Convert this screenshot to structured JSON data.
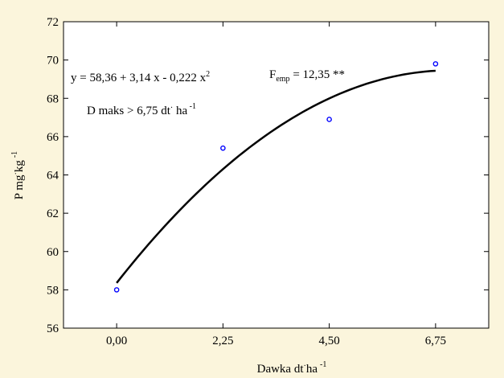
{
  "chart_data": {
    "type": "scatter",
    "xlabel_main": "Dawka dt",
    "xlabel_sup": "·",
    "xlabel_unit": "ha",
    "xlabel_exp": "-1",
    "ylabel": "P mg",
    "ylabel_sup": "·",
    "ylabel_unit": "kg",
    "ylabel_exp": "-1",
    "x_ticks": [
      {
        "value": 0,
        "label": "0,00"
      },
      {
        "value": 2.25,
        "label": "2,25"
      },
      {
        "value": 4.5,
        "label": "4,50"
      },
      {
        "value": 6.75,
        "label": "6,75"
      }
    ],
    "xlim": [
      -1.125,
      7.875
    ],
    "ylim": [
      56,
      72
    ],
    "y_ticks": [
      56,
      58,
      60,
      62,
      64,
      66,
      68,
      70,
      72
    ],
    "points": [
      {
        "x": 0,
        "y": 58.0
      },
      {
        "x": 2.25,
        "y": 65.4
      },
      {
        "x": 4.5,
        "y": 66.9
      },
      {
        "x": 6.75,
        "y": 69.8
      }
    ],
    "fit": {
      "a": 58.36,
      "b": 3.14,
      "c": -0.222,
      "x_from": 0,
      "x_to": 6.75
    },
    "annotations": {
      "equation": "y = 58,36 + 3,14 x - 0,222 x",
      "equation_exp": "2",
      "femp_main": "F",
      "femp_sub": "emp",
      "femp_rest": " = 12,35 **",
      "dmaks": "D maks > 6,75 dt",
      "dmaks_dot": "·",
      "dmaks_unit": " ha",
      "dmaks_exp": " -1"
    },
    "marker_color": "#0000ff",
    "line_color": "#000000",
    "background_color": "#fbf5dc",
    "plot_background": "#ffffff",
    "grid": false
  }
}
